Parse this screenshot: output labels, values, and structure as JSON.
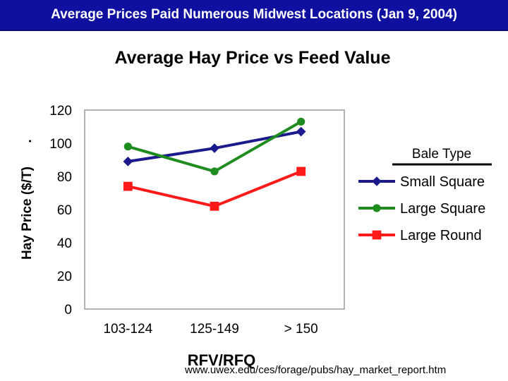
{
  "slide": {
    "header_title": "Average Prices Paid Numerous Midwest Locations (Jan 9, 2004)",
    "source_url": "www.uwex.edu/ces/forage/pubs/hay_market_report.htm",
    "header_color": "#1010a0"
  },
  "chart_data": {
    "type": "line",
    "title": "Average Hay Price vs Feed Value",
    "xlabel": "RFV/RFQ",
    "ylabel": "Hay Price ($/T)",
    "ylim": [
      0,
      120
    ],
    "yticks": [
      "0",
      "20",
      "40",
      "60",
      "80",
      "100",
      "120"
    ],
    "categories": [
      "103-124",
      "125-149",
      "> 150"
    ],
    "legend_title": "Bale Type",
    "legend_position": "right",
    "grid": false,
    "series": [
      {
        "name": "Small Square",
        "values": [
          89,
          97,
          107
        ],
        "color": "#1a1a8c",
        "marker": "diamond"
      },
      {
        "name": "Large Square",
        "values": [
          98,
          83,
          113
        ],
        "color": "#1e8c1e",
        "marker": "circle"
      },
      {
        "name": "Large Round",
        "values": [
          74,
          62,
          83
        ],
        "color": "#ff1a1a",
        "marker": "square"
      }
    ]
  }
}
